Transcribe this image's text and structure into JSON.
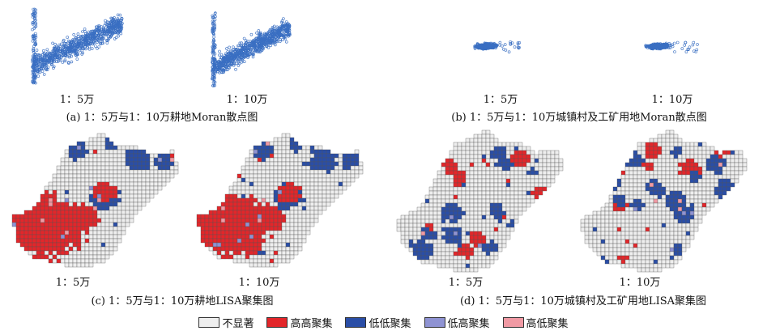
{
  "chart_data": [
    {
      "type": "scatter",
      "id": "a1",
      "scale_label": "1：5万",
      "density": "high",
      "seed": 11
    },
    {
      "type": "scatter",
      "id": "a2",
      "scale_label": "1：10万",
      "density": "high",
      "seed": 23
    },
    {
      "type": "scatter",
      "id": "b1",
      "scale_label": "1：5万",
      "density": "low",
      "seed": 37
    },
    {
      "type": "scatter",
      "id": "b2",
      "scale_label": "1：10万",
      "density": "low",
      "seed": 41
    },
    {
      "type": "heatmap",
      "id": "c1",
      "scale_label": "1：5万",
      "pattern": "cropland",
      "seed": 5
    },
    {
      "type": "heatmap",
      "id": "c2",
      "scale_label": "1：10万",
      "pattern": "cropland",
      "seed": 7
    },
    {
      "type": "heatmap",
      "id": "d1",
      "scale_label": "1：5万",
      "pattern": "urban",
      "seed": 13
    },
    {
      "type": "heatmap",
      "id": "d2",
      "scale_label": "1：10万",
      "pattern": "urban",
      "seed": 17
    }
  ],
  "captions": {
    "a": "(a) 1：5万与1：10万耕地Moran散点图",
    "b": "(b) 1：5万与1：10万城镇村及工矿用地Moran散点图",
    "c": "(c) 1：5万与1：10万耕地LISA聚集图",
    "d": "(d) 1：5万与1：10万城镇村及工矿用地LISA聚集图"
  },
  "legend": [
    {
      "label": "不显著",
      "color": "#eeeeee"
    },
    {
      "label": "高高聚集",
      "color": "#e3262a"
    },
    {
      "label": "低低聚集",
      "color": "#2a4ea6"
    },
    {
      "label": "低高聚集",
      "color": "#8f93d3"
    },
    {
      "label": "高低聚集",
      "color": "#f19aa4"
    }
  ]
}
